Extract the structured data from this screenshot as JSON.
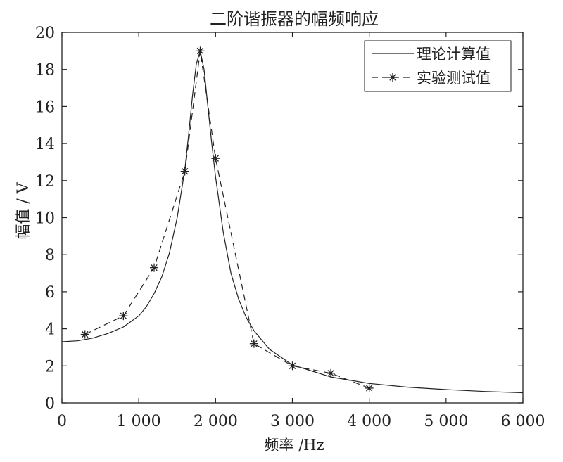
{
  "chart_data": {
    "type": "line",
    "title": "二阶谐振器的幅频响应",
    "xlabel": "频率 /Hz",
    "ylabel": "幅值 / V",
    "xlim": [
      0,
      6000
    ],
    "ylim": [
      0,
      20
    ],
    "xticks": [
      0,
      1000,
      2000,
      3000,
      4000,
      5000,
      6000
    ],
    "xtick_labels": [
      "0",
      "1 000",
      "2 000",
      "3 000",
      "4 000",
      "5 000",
      "6 000"
    ],
    "yticks": [
      0,
      2,
      4,
      6,
      8,
      10,
      12,
      14,
      16,
      18,
      20
    ],
    "ytick_labels": [
      "0",
      "2",
      "4",
      "6",
      "8",
      "10",
      "12",
      "14",
      "16",
      "18",
      "20"
    ],
    "grid": false,
    "legend_position": "top-right",
    "series": [
      {
        "name": "理论计算值",
        "style": "solid",
        "x": [
          0,
          200,
          400,
          600,
          800,
          1000,
          1100,
          1200,
          1300,
          1400,
          1500,
          1600,
          1650,
          1700,
          1750,
          1800,
          1850,
          1900,
          1950,
          2000,
          2100,
          2200,
          2300,
          2400,
          2500,
          2700,
          3000,
          3500,
          4000,
          4500,
          5000,
          5500,
          6000
        ],
        "y": [
          3.3,
          3.35,
          3.5,
          3.75,
          4.1,
          4.7,
          5.2,
          5.9,
          6.8,
          8.1,
          10.0,
          12.6,
          14.5,
          16.6,
          18.3,
          19.0,
          18.0,
          16.0,
          14.0,
          12.2,
          9.2,
          7.0,
          5.6,
          4.6,
          3.9,
          2.9,
          2.05,
          1.4,
          1.05,
          0.85,
          0.72,
          0.62,
          0.55
        ]
      },
      {
        "name": "实验测试值",
        "style": "dashed-star",
        "x": [
          300,
          800,
          1200,
          1600,
          1800,
          2000,
          2500,
          3000,
          3500,
          4000
        ],
        "y": [
          3.7,
          4.7,
          7.3,
          12.5,
          19.0,
          13.2,
          3.2,
          2.0,
          1.6,
          0.8
        ]
      }
    ]
  }
}
